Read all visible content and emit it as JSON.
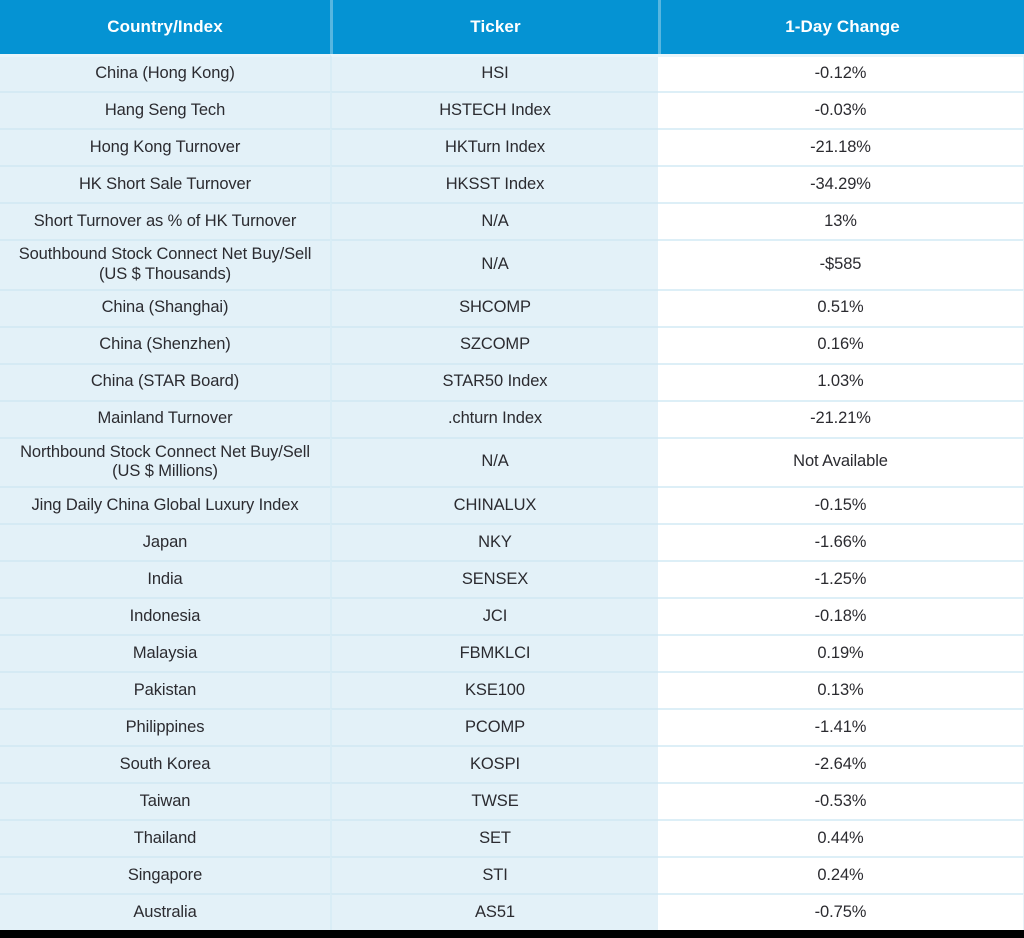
{
  "chart_data": {
    "type": "table",
    "columns": [
      "Country/Index",
      "Ticker",
      "1-Day Change"
    ],
    "rows": [
      [
        "China (Hong Kong)",
        "HSI",
        "-0.12%"
      ],
      [
        "Hang Seng Tech",
        "HSTECH Index",
        "-0.03%"
      ],
      [
        "Hong Kong Turnover",
        "HKTurn Index",
        "-21.18%"
      ],
      [
        "HK Short Sale Turnover",
        "HKSST Index",
        "-34.29%"
      ],
      [
        "Short Turnover as % of HK Turnover",
        "N/A",
        "13%"
      ],
      [
        "Southbound Stock Connect Net Buy/Sell (US $ Thousands)",
        "N/A",
        "-$585"
      ],
      [
        "China (Shanghai)",
        "SHCOMP",
        "0.51%"
      ],
      [
        "China (Shenzhen)",
        "SZCOMP",
        "0.16%"
      ],
      [
        "China (STAR Board)",
        "STAR50 Index",
        "1.03%"
      ],
      [
        "Mainland Turnover",
        ".chturn Index",
        "-21.21%"
      ],
      [
        "Northbound Stock Connect Net Buy/Sell (US $ Millions)",
        "N/A",
        "Not Available"
      ],
      [
        "Jing Daily China Global Luxury Index",
        "CHINALUX",
        "-0.15%"
      ],
      [
        "Japan",
        "NKY",
        "-1.66%"
      ],
      [
        "India",
        "SENSEX",
        "-1.25%"
      ],
      [
        "Indonesia",
        "JCI",
        "-0.18%"
      ],
      [
        "Malaysia",
        "FBMKLCI",
        "0.19%"
      ],
      [
        "Pakistan",
        "KSE100",
        "0.13%"
      ],
      [
        "Philippines",
        "PCOMP",
        "-1.41%"
      ],
      [
        "South Korea",
        "KOSPI",
        "-2.64%"
      ],
      [
        "Taiwan",
        "TWSE",
        "-0.53%"
      ],
      [
        "Thailand",
        "SET",
        "0.44%"
      ],
      [
        "Singapore",
        "STI",
        "0.24%"
      ],
      [
        "Australia",
        "AS51",
        "-0.75%"
      ]
    ],
    "legend_position": "none",
    "grid": true
  },
  "colors": {
    "header_bg": "#0593D3",
    "header_text": "#FFFFFF",
    "row_bg": "#E3F1F8",
    "change_column_bg": "#FFFFFF",
    "divider": "#D5EAF4",
    "body_text": "#2B2B30",
    "bottom_bar": "#000000"
  }
}
